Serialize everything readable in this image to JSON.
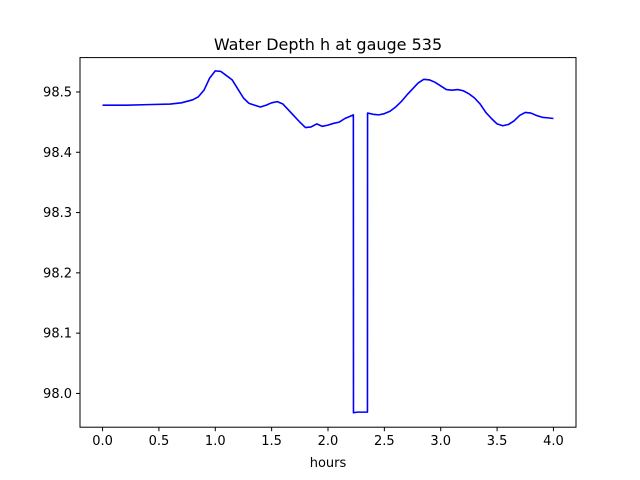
{
  "chart_data": {
    "type": "line",
    "title": "Water Depth h at gauge 535",
    "xlabel": "hours",
    "ylabel": "",
    "xlim": [
      -0.2,
      4.2
    ],
    "ylim": [
      97.944,
      98.557
    ],
    "x_ticks": [
      0.0,
      0.5,
      1.0,
      1.5,
      2.0,
      2.5,
      3.0,
      3.5,
      4.0
    ],
    "x_tick_labels": [
      "0.0",
      "0.5",
      "1.0",
      "1.5",
      "2.0",
      "2.5",
      "3.0",
      "3.5",
      "4.0"
    ],
    "y_ticks": [
      98.0,
      98.1,
      98.2,
      98.3,
      98.4,
      98.5
    ],
    "y_tick_labels": [
      "98.0",
      "98.1",
      "98.2",
      "98.3",
      "98.4",
      "98.5"
    ],
    "grid": false,
    "legend": "none",
    "series": [
      {
        "color": "#0000ff",
        "x": [
          0.0,
          0.2,
          0.4,
          0.6,
          0.7,
          0.8,
          0.85,
          0.9,
          0.95,
          1.0,
          1.05,
          1.1,
          1.15,
          1.2,
          1.25,
          1.3,
          1.35,
          1.4,
          1.45,
          1.5,
          1.55,
          1.6,
          1.65,
          1.7,
          1.75,
          1.8,
          1.85,
          1.9,
          1.95,
          2.0,
          2.05,
          2.1,
          2.15,
          2.2,
          2.225,
          2.226,
          2.26,
          2.3,
          2.35,
          2.351,
          2.4,
          2.45,
          2.5,
          2.55,
          2.6,
          2.65,
          2.7,
          2.75,
          2.8,
          2.85,
          2.9,
          2.95,
          3.0,
          3.05,
          3.1,
          3.15,
          3.2,
          3.25,
          3.3,
          3.35,
          3.4,
          3.45,
          3.5,
          3.55,
          3.6,
          3.65,
          3.7,
          3.75,
          3.8,
          3.85,
          3.9,
          3.95,
          4.0
        ],
        "y": [
          98.478,
          98.478,
          98.479,
          98.48,
          98.482,
          98.487,
          98.492,
          98.503,
          98.523,
          98.535,
          98.534,
          98.527,
          98.52,
          98.505,
          98.49,
          98.481,
          98.478,
          98.475,
          98.478,
          98.482,
          98.484,
          98.48,
          98.47,
          98.46,
          98.45,
          98.441,
          98.442,
          98.447,
          98.443,
          98.445,
          98.448,
          98.45,
          98.456,
          98.46,
          98.462,
          97.968,
          97.969,
          97.969,
          97.969,
          98.465,
          98.463,
          98.462,
          98.464,
          98.468,
          98.475,
          98.484,
          98.495,
          98.505,
          98.515,
          98.521,
          98.52,
          98.516,
          98.51,
          98.504,
          98.503,
          98.504,
          98.502,
          98.497,
          98.49,
          98.48,
          98.466,
          98.456,
          98.447,
          98.444,
          98.446,
          98.452,
          98.461,
          98.466,
          98.465,
          98.461,
          98.458,
          98.457,
          98.456
        ]
      }
    ]
  }
}
